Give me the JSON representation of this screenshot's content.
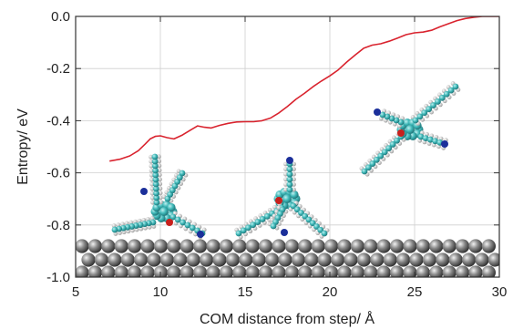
{
  "chart_data": {
    "type": "line",
    "title": "",
    "xlabel": "COM distance from step/ Å",
    "ylabel": "Entropy/ eV",
    "xlim": [
      5,
      30
    ],
    "ylim": [
      -1.0,
      0.0
    ],
    "xticks": [
      5,
      10,
      15,
      20,
      25,
      30
    ],
    "xtick_labels": [
      "5",
      "10",
      "15",
      "20",
      "25",
      "30"
    ],
    "yticks": [
      0.0,
      -0.2,
      -0.4,
      -0.6,
      -0.8,
      -1.0
    ],
    "ytick_labels": [
      "0.0",
      "-0.2",
      "-0.4",
      "-0.6",
      "-0.8",
      "-1.0"
    ],
    "grid": true,
    "series": [
      {
        "color": "#d9232e",
        "x": [
          7.0,
          7.6,
          8.2,
          8.7,
          9.1,
          9.4,
          9.7,
          10.0,
          10.4,
          10.8,
          11.3,
          11.8,
          12.2,
          12.6,
          13.0,
          13.5,
          14.0,
          14.5,
          15.0,
          15.5,
          16.0,
          16.5,
          17.0,
          17.5,
          18.0,
          18.5,
          19.0,
          19.5,
          20.0,
          20.5,
          21.0,
          21.5,
          22.0,
          22.5,
          23.0,
          23.5,
          24.0,
          24.5,
          25.0,
          25.5,
          26.0,
          26.5,
          27.0,
          27.5,
          28.0,
          28.5,
          29.0,
          29.5,
          30.0
        ],
        "y": [
          -0.555,
          -0.548,
          -0.535,
          -0.515,
          -0.49,
          -0.47,
          -0.46,
          -0.458,
          -0.465,
          -0.47,
          -0.455,
          -0.435,
          -0.42,
          -0.425,
          -0.428,
          -0.418,
          -0.41,
          -0.405,
          -0.404,
          -0.404,
          -0.4,
          -0.39,
          -0.37,
          -0.345,
          -0.318,
          -0.295,
          -0.27,
          -0.248,
          -0.228,
          -0.205,
          -0.175,
          -0.148,
          -0.122,
          -0.11,
          -0.105,
          -0.095,
          -0.083,
          -0.07,
          -0.063,
          -0.06,
          -0.053,
          -0.04,
          -0.028,
          -0.016,
          -0.008,
          -0.003,
          0.0,
          0.0,
          0.0
        ]
      }
    ],
    "insets": [
      {
        "description": "molecule",
        "color_body": "#3fb8b8"
      }
    ],
    "surface_color": "#555555"
  }
}
